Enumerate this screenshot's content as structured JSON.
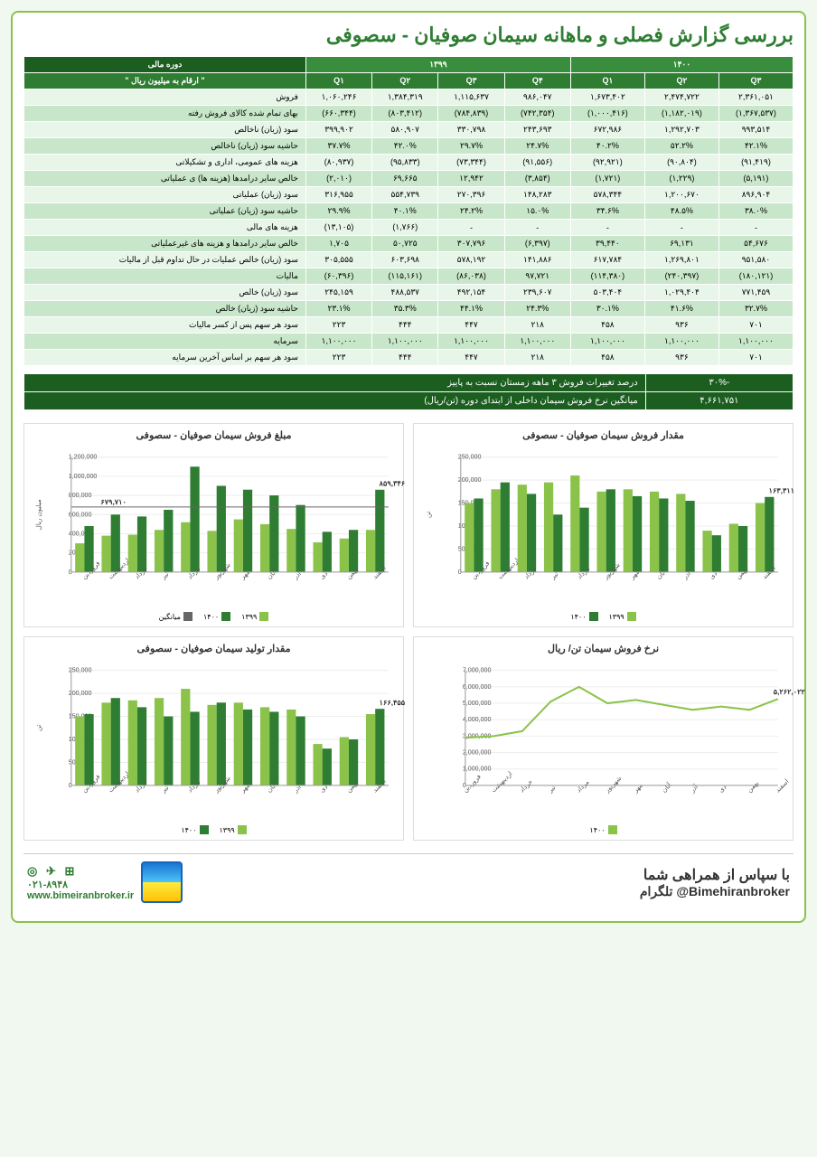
{
  "title": "بررسی گزارش فصلی و ماهانه سیمان صوفیان - سصوفی",
  "table": {
    "period_header": "دوره مالی",
    "unit_header": "\" ارقام به میلیون ریال \"",
    "year_1400": "۱۴۰۰",
    "year_1399": "۱۳۹۹",
    "quarters_1400": [
      "Q۳",
      "Q۲",
      "Q۱"
    ],
    "quarters_1399": [
      "Q۴",
      "Q۳",
      "Q۲",
      "Q۱"
    ],
    "rows": [
      {
        "label": "فروش",
        "v": [
          "۲,۳۶۱,۰۵۱",
          "۲,۴۷۴,۷۲۲",
          "۱,۶۷۳,۴۰۲",
          "۹۸۶,۰۴۷",
          "۱,۱۱۵,۶۳۷",
          "۱,۳۸۴,۳۱۹",
          "۱,۰۶۰,۲۴۶"
        ]
      },
      {
        "label": "بهای تمام شده کالای فروش رفته",
        "v": [
          "(۱,۳۶۷,۵۳۷)",
          "(۱,۱۸۲,۰۱۹)",
          "(۱,۰۰۰,۴۱۶)",
          "(۷۴۲,۳۵۴)",
          "(۷۸۴,۸۳۹)",
          "(۸۰۳,۴۱۲)",
          "(۶۶۰,۳۴۴)"
        ]
      },
      {
        "label": "سود (زیان) ناخالص",
        "v": [
          "۹۹۳,۵۱۴",
          "۱,۲۹۲,۷۰۳",
          "۶۷۲,۹۸۶",
          "۲۴۳,۶۹۳",
          "۳۳۰,۷۹۸",
          "۵۸۰,۹۰۷",
          "۳۹۹,۹۰۲"
        ]
      },
      {
        "label": "حاشیه سود (زیان) ناخالص",
        "v": [
          "۴۲.۱%",
          "۵۲.۲%",
          "۴۰.۲%",
          "۲۴.۷%",
          "۲۹.۷%",
          "۴۲.۰%",
          "۳۷.۷%"
        ]
      },
      {
        "label": "هزینه های عمومی، اداری و تشکیلاتی",
        "v": [
          "(۹۱,۴۱۹)",
          "(۹۰,۸۰۴)",
          "(۹۲,۹۲۱)",
          "(۹۱,۵۵۶)",
          "(۷۳,۳۴۴)",
          "(۹۵,۸۳۳)",
          "(۸۰,۹۳۷)"
        ]
      },
      {
        "label": "خالص سایر درامدها (هزینه ها) ی عملیاتی",
        "v": [
          "(۵,۱۹۱)",
          "(۱,۲۲۹)",
          "(۱,۷۲۱)",
          "(۳,۸۵۴)",
          "۱۲,۹۴۲",
          "۶۹,۶۶۵",
          "(۲,۰۱۰)"
        ]
      },
      {
        "label": "سود (زیان) عملیاتی",
        "v": [
          "۸۹۶,۹۰۴",
          "۱,۲۰۰,۶۷۰",
          "۵۷۸,۳۴۴",
          "۱۴۸,۲۸۳",
          "۲۷۰,۳۹۶",
          "۵۵۴,۷۳۹",
          "۳۱۶,۹۵۵"
        ]
      },
      {
        "label": "حاشیه سود (زیان) عملیاتی",
        "v": [
          "۳۸.۰%",
          "۴۸.۵%",
          "۳۴.۶%",
          "۱۵.۰%",
          "۲۴.۲%",
          "۴۰.۱%",
          "۲۹.۹%"
        ]
      },
      {
        "label": "هزینه های مالی",
        "v": [
          "-",
          "-",
          "-",
          "-",
          "-",
          "(۱,۷۶۶)",
          "(۱۳,۱۰۵)"
        ]
      },
      {
        "label": "خالص سایر درامدها و هزینه های غیرعملیاتی",
        "v": [
          "۵۴,۶۷۶",
          "۶۹,۱۳۱",
          "۳۹,۴۴۰",
          "(۶,۳۹۷)",
          "۳۰۷,۷۹۶",
          "۵۰,۷۲۵",
          "۱,۷۰۵"
        ]
      },
      {
        "label": "سود (زیان) خالص عملیات در حال تداوم قبل از مالیات",
        "v": [
          "۹۵۱,۵۸۰",
          "۱,۲۶۹,۸۰۱",
          "۶۱۷,۷۸۴",
          "۱۴۱,۸۸۶",
          "۵۷۸,۱۹۲",
          "۶۰۳,۶۹۸",
          "۳۰۵,۵۵۵"
        ]
      },
      {
        "label": "مالیات",
        "v": [
          "(۱۸۰,۱۲۱)",
          "(۲۴۰,۳۹۷)",
          "(۱۱۴,۳۸۰)",
          "۹۷,۷۲۱",
          "(۸۶,۰۳۸)",
          "(۱۱۵,۱۶۱)",
          "(۶۰,۳۹۶)"
        ]
      },
      {
        "label": "سود (زیان) خالص",
        "v": [
          "۷۷۱,۴۵۹",
          "۱,۰۲۹,۴۰۴",
          "۵۰۳,۴۰۴",
          "۲۳۹,۶۰۷",
          "۴۹۲,۱۵۴",
          "۴۸۸,۵۳۷",
          "۲۴۵,۱۵۹"
        ]
      },
      {
        "label": "حاشیه سود (زیان) خالص",
        "v": [
          "۳۲.۷%",
          "۴۱.۶%",
          "۳۰.۱%",
          "۲۴.۳%",
          "۴۴.۱%",
          "۳۵.۳%",
          "۲۳.۱%"
        ]
      },
      {
        "label": "سود هر سهم پس از کسر مالیات",
        "v": [
          "۷۰۱",
          "۹۳۶",
          "۴۵۸",
          "۲۱۸",
          "۴۴۷",
          "۴۴۴",
          "۲۲۳"
        ]
      },
      {
        "label": "سرمایه",
        "v": [
          "۱,۱۰۰,۰۰۰",
          "۱,۱۰۰,۰۰۰",
          "۱,۱۰۰,۰۰۰",
          "۱,۱۰۰,۰۰۰",
          "۱,۱۰۰,۰۰۰",
          "۱,۱۰۰,۰۰۰",
          "۱,۱۰۰,۰۰۰"
        ]
      },
      {
        "label": "سود هر سهم بر اساس آخرین سرمایه",
        "v": [
          "۷۰۱",
          "۹۳۶",
          "۴۵۸",
          "۲۱۸",
          "۴۴۷",
          "۴۴۴",
          "۲۲۳"
        ]
      }
    ]
  },
  "summary": [
    {
      "label": "درصد تغییرات فروش ۳ ماهه زمستان نسبت به پاییز",
      "value": "-۳۰%"
    },
    {
      "label": "میانگین نرخ فروش سیمان داخلی از ابتدای دوره (تن/ریال)",
      "value": "۴,۶۶۱,۷۵۱"
    }
  ],
  "months": [
    "فروردین",
    "اردیبهشت",
    "خرداد",
    "تیر",
    "مرداد",
    "شهریور",
    "مهر",
    "آبان",
    "آذر",
    "دی",
    "بهمن",
    "اسفند"
  ],
  "chart1": {
    "title": "مقدار فروش سیمان صوفیان - سصوفی",
    "ylabel": "تن",
    "ymax": 250000,
    "ytick": 50000,
    "series_1399": [
      150000,
      180000,
      190000,
      195000,
      210000,
      175000,
      180000,
      175000,
      170000,
      90000,
      105000,
      150000
    ],
    "series_1400": [
      160000,
      195000,
      170000,
      125000,
      140000,
      180000,
      165000,
      160000,
      155000,
      80000,
      100000,
      163311
    ],
    "annotation": "۱۶۳,۳۱۱",
    "colors": {
      "s1399": "#8bc34a",
      "s1400": "#2e7d32"
    },
    "legend": [
      "۱۳۹۹",
      "۱۴۰۰"
    ]
  },
  "chart2": {
    "title": "مبلغ فروش سیمان صوفیان - سصوفی",
    "ylabel": "میلیون ریال",
    "ymax": 1200000,
    "ytick": 200000,
    "series_1399": [
      300000,
      380000,
      390000,
      440000,
      520000,
      430000,
      550000,
      500000,
      450000,
      310000,
      350000,
      440000
    ],
    "series_1400": [
      480000,
      600000,
      580000,
      650000,
      1100000,
      900000,
      860000,
      800000,
      700000,
      420000,
      440000,
      859346
    ],
    "annotation": "۸۵۹,۳۴۶",
    "avg_line": 679710,
    "avg_label": "۶۷۹,۷۱۰",
    "colors": {
      "s1399": "#8bc34a",
      "s1400": "#2e7d32"
    },
    "legend": [
      "۱۳۹۹",
      "۱۴۰۰",
      "میانگین"
    ]
  },
  "chart3": {
    "title": "نرخ فروش سیمان تن/ ریال",
    "ylabel": "",
    "ymax": 7000000,
    "ytick": 1000000,
    "series_1400": [
      2900000,
      3000000,
      3300000,
      5100000,
      6000000,
      5000000,
      5200000,
      4900000,
      4600000,
      4800000,
      4600000,
      5262022
    ],
    "annotation": "۵,۲۶۲,۰۲۲",
    "colors": {
      "s1400": "#8bc34a"
    },
    "legend": [
      "۱۴۰۰"
    ]
  },
  "chart4": {
    "title": "مقدار تولید  سیمان صوفیان - سصوفی",
    "ylabel": "تن",
    "ymax": 250000,
    "ytick": 50000,
    "series_1399": [
      150000,
      180000,
      185000,
      190000,
      210000,
      175000,
      180000,
      170000,
      165000,
      90000,
      105000,
      155000
    ],
    "series_1400": [
      155000,
      190000,
      170000,
      150000,
      160000,
      180000,
      165000,
      160000,
      150000,
      80000,
      100000,
      166455
    ],
    "annotation": "۱۶۶,۴۵۵",
    "colors": {
      "s1399": "#8bc34a",
      "s1400": "#2e7d32"
    },
    "legend": [
      "۱۳۹۹",
      "۱۴۰۰"
    ]
  },
  "footer": {
    "thanks": "با سپاس از همراهی شما",
    "telegram_label": "تلگرام",
    "telegram": "@Bimehiranbroker",
    "phone": "۰۲۱-۸۹۴۸",
    "website": "www.bimeiranbroker.ir"
  }
}
